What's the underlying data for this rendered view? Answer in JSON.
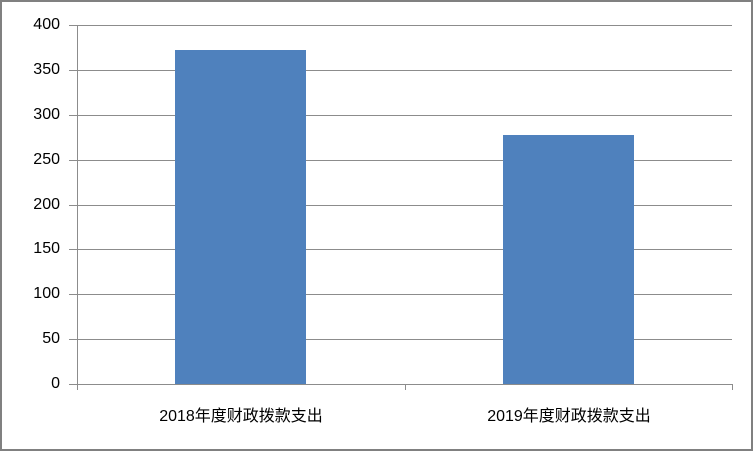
{
  "chart_data": {
    "type": "bar",
    "title": "",
    "xlabel": "",
    "ylabel": "",
    "categories": [
      "2018年度财政拨款支出",
      "2019年度财政拨款支出"
    ],
    "values": [
      372,
      277
    ],
    "ylim": [
      0,
      400
    ],
    "ytick_step": 50,
    "ytick_labels": [
      "0",
      "50",
      "100",
      "150",
      "200",
      "250",
      "300",
      "350",
      "400"
    ],
    "grid": true,
    "legend_position": "none",
    "bar_color": "#4F81BD",
    "gridline_color": "#8C8C8C",
    "axis_color": "#8C8C8C",
    "text_color": "#000000",
    "frame_border_color": "#808080",
    "background_color": "#FFFFFF"
  }
}
